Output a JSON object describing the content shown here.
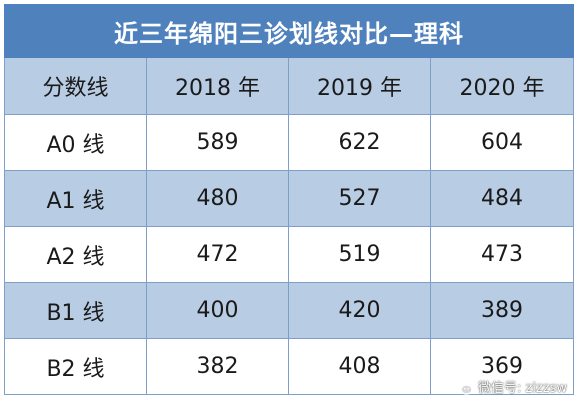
{
  "title": "近三年绵阳三诊划线对比—理科",
  "headers": [
    "分数线",
    "2018 年",
    "2019 年",
    "2020 年"
  ],
  "rows": [
    [
      "A0 线",
      "589",
      "622",
      "604"
    ],
    [
      "A1 线",
      "480",
      "527",
      "484"
    ],
    [
      "A2 线",
      "472",
      "519",
      "473"
    ],
    [
      "B1 线",
      "400",
      "420",
      "389"
    ],
    [
      "B2 线",
      "382",
      "408",
      "369"
    ]
  ],
  "watermark": "微信号: zizzsw",
  "colors": {
    "title_bg": "#4f81bd",
    "band_bg": "#b8cce4",
    "border": "#7f9ec8"
  }
}
